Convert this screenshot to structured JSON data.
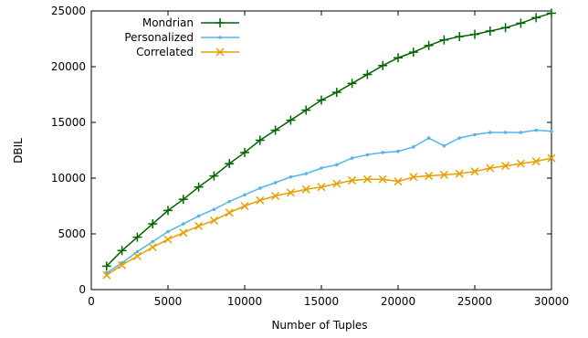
{
  "chart_data": {
    "type": "line",
    "xlabel": "Number of Tuples",
    "ylabel": "DBIL",
    "xlim": [
      0,
      30000
    ],
    "ylim": [
      0,
      25000
    ],
    "x_ticks": [
      0,
      5000,
      10000,
      15000,
      20000,
      25000,
      30000
    ],
    "y_ticks": [
      0,
      5000,
      10000,
      15000,
      20000,
      25000
    ],
    "grid": false,
    "legend_position": "top-left",
    "x": [
      1000,
      2000,
      3000,
      4000,
      5000,
      6000,
      7000,
      8000,
      9000,
      10000,
      11000,
      12000,
      13000,
      14000,
      15000,
      16000,
      17000,
      18000,
      19000,
      20000,
      21000,
      22000,
      23000,
      24000,
      25000,
      26000,
      27000,
      28000,
      29000,
      30000
    ],
    "series": [
      {
        "name": "Mondrian",
        "color": "#006400",
        "marker": "plus",
        "values": [
          2100,
          3500,
          4700,
          5900,
          7100,
          8100,
          9200,
          10200,
          11300,
          12300,
          13400,
          14300,
          15200,
          16100,
          17000,
          17700,
          18500,
          19300,
          20100,
          20800,
          21300,
          21900,
          22400,
          22700,
          22900,
          23200,
          23500,
          23900,
          24400,
          24800
        ]
      },
      {
        "name": "Personalized",
        "color": "#56b4e9",
        "marker": "dot",
        "values": [
          1500,
          2400,
          3400,
          4300,
          5200,
          5900,
          6600,
          7200,
          7900,
          8500,
          9100,
          9600,
          10100,
          10400,
          10900,
          11200,
          11800,
          12100,
          12300,
          12400,
          12800,
          13600,
          12900,
          13600,
          13900,
          14100,
          14100,
          14100,
          14300,
          14200
        ]
      },
      {
        "name": "Correlated",
        "color": "#e69f00",
        "marker": "cross",
        "values": [
          1300,
          2200,
          3000,
          3800,
          4500,
          5100,
          5700,
          6200,
          6900,
          7500,
          8000,
          8400,
          8700,
          9000,
          9200,
          9500,
          9800,
          9900,
          9900,
          9700,
          10100,
          10200,
          10300,
          10400,
          10600,
          10900,
          11100,
          11300,
          11500,
          11800
        ]
      }
    ]
  }
}
